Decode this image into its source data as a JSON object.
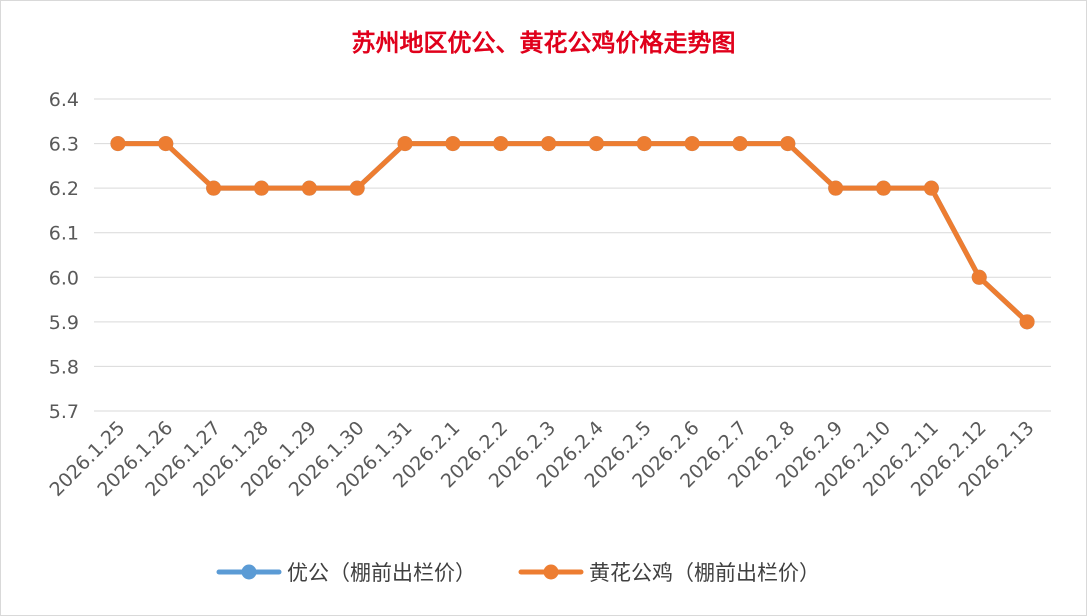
{
  "chart_data": {
    "type": "line",
    "title": "苏州地区优公、黄花公鸡价格走势图",
    "xlabel": "",
    "ylabel": "",
    "categories": [
      "2026.1.25",
      "2026.1.26",
      "2026.1.27",
      "2026.1.28",
      "2026.1.29",
      "2026.1.30",
      "2026.1.31",
      "2026.2.1",
      "2026.2.2",
      "2026.2.3",
      "2026.2.4",
      "2026.2.5",
      "2026.2.6",
      "2026.2.7",
      "2026.2.8",
      "2026.2.9",
      "2026.2.10",
      "2026.2.11",
      "2026.2.12",
      "2026.2.13"
    ],
    "y_ticks": [
      "5.7",
      "5.8",
      "5.9",
      "6.0",
      "6.1",
      "6.2",
      "6.3",
      "6.4"
    ],
    "ylim": [
      5.7,
      6.4
    ],
    "grid": true,
    "legend_position": "bottom",
    "series": [
      {
        "name": "优公（棚前出栏价）",
        "color": "#5b9bd5",
        "values": [
          6.3,
          6.3,
          6.2,
          6.2,
          6.2,
          6.2,
          6.3,
          6.3,
          6.3,
          6.3,
          6.3,
          6.3,
          6.3,
          6.3,
          6.3,
          6.2,
          6.2,
          6.2,
          6.0,
          5.9
        ]
      },
      {
        "name": "黄花公鸡（棚前出栏价）",
        "color": "#ed7d31",
        "values": [
          6.3,
          6.3,
          6.2,
          6.2,
          6.2,
          6.2,
          6.3,
          6.3,
          6.3,
          6.3,
          6.3,
          6.3,
          6.3,
          6.3,
          6.3,
          6.2,
          6.2,
          6.2,
          6.0,
          5.9
        ]
      }
    ]
  }
}
